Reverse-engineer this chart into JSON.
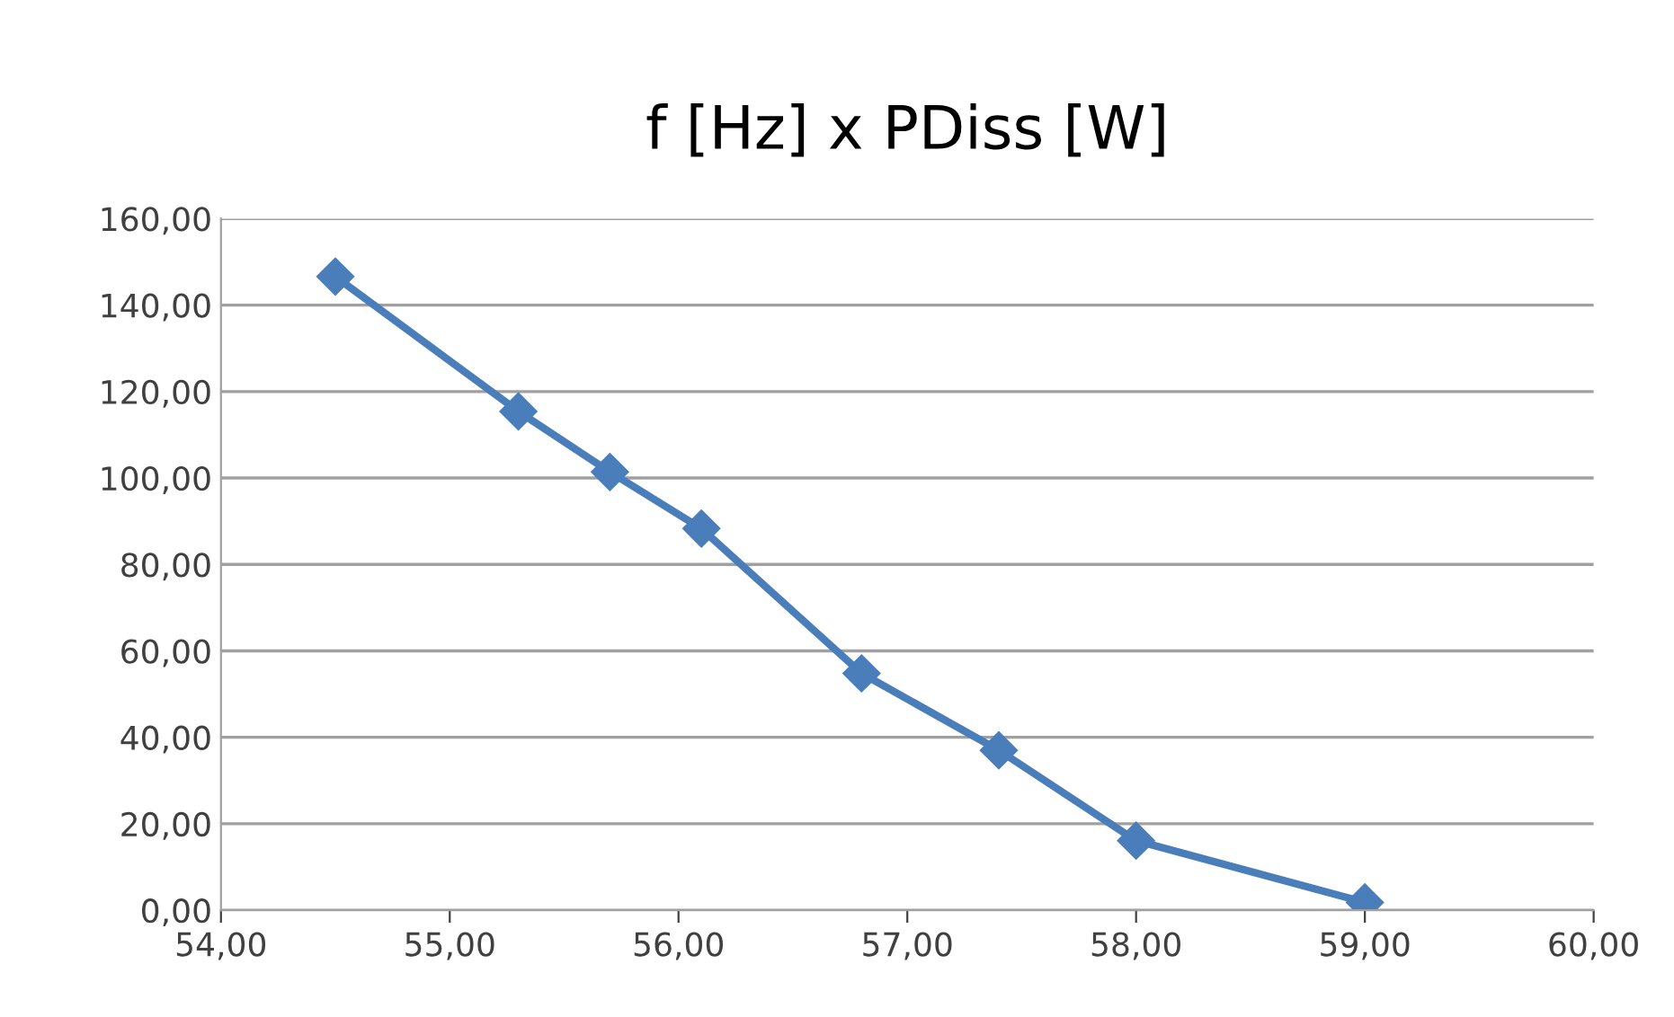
{
  "chart_data": {
    "type": "line",
    "title": "f [Hz] x PDiss [W]",
    "x": [
      54.5,
      55.3,
      55.7,
      56.1,
      56.8,
      57.4,
      58.0,
      59.0
    ],
    "series": [
      {
        "color": "#4a7ebb",
        "values": [
          146.6,
          115.4,
          101.4,
          88.3,
          54.8,
          37.0,
          16.1,
          1.8
        ]
      }
    ],
    "xlim": [
      54,
      60
    ],
    "ylim": [
      0,
      160
    ],
    "xticks": [
      {
        "value": 54,
        "label": "54,00"
      },
      {
        "value": 55,
        "label": "55,00"
      },
      {
        "value": 56,
        "label": "56,00"
      },
      {
        "value": 57,
        "label": "57,00"
      },
      {
        "value": 58,
        "label": "58,00"
      },
      {
        "value": 59,
        "label": "59,00"
      },
      {
        "value": 60,
        "label": "60,00"
      }
    ],
    "yticks": [
      {
        "value": 0,
        "label": "0,00"
      },
      {
        "value": 20,
        "label": "20,00"
      },
      {
        "value": 40,
        "label": "40,00"
      },
      {
        "value": 60,
        "label": "60,00"
      },
      {
        "value": 80,
        "label": "80,00"
      },
      {
        "value": 100,
        "label": "100,00"
      },
      {
        "value": 120,
        "label": "120,00"
      },
      {
        "value": 140,
        "label": "140,00"
      },
      {
        "value": 160,
        "label": "160,00"
      }
    ],
    "grid": "y",
    "marker": "diamond",
    "line_style": "solid",
    "legend": false
  }
}
